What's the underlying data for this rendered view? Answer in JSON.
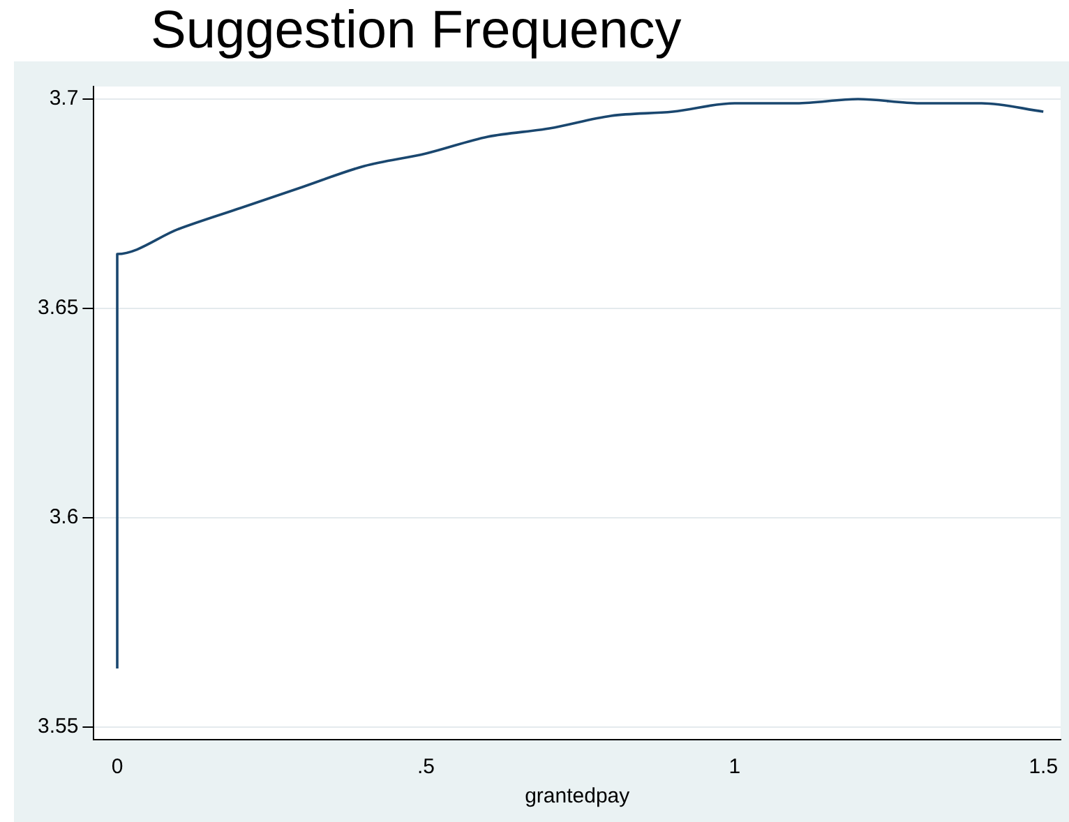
{
  "chart_data": {
    "type": "line",
    "title": "Suggestion Frequency",
    "xlabel": "grantedpay",
    "series": [
      {
        "color": "#1a476f",
        "x": [
          0,
          0,
          0.1,
          0.2,
          0.3,
          0.4,
          0.5,
          0.6,
          0.7,
          0.8,
          0.9,
          1.0,
          1.1,
          1.2,
          1.3,
          1.4,
          1.5
        ],
        "values": [
          3.564,
          3.663,
          3.669,
          3.674,
          3.679,
          3.684,
          3.687,
          3.691,
          3.693,
          3.696,
          3.697,
          3.699,
          3.699,
          3.7,
          3.699,
          3.699,
          3.697
        ]
      }
    ],
    "xlim": [
      -0.038,
      1.528
    ],
    "xticks": [
      0,
      {
        "value": 0.5,
        "label": ".5"
      },
      1,
      1.5
    ],
    "ylim": [
      3.547,
      3.703
    ],
    "yticks": [
      3.55,
      3.6,
      3.65,
      3.7
    ],
    "grid": "y",
    "legend": false,
    "marker": "none",
    "line_style": "solid"
  }
}
